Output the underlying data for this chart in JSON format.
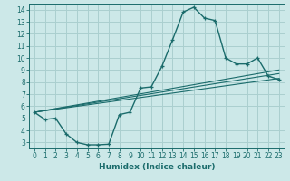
{
  "bg_color": "#cce8e8",
  "grid_color": "#aacfcf",
  "line_color": "#1a6b6b",
  "xlabel": "Humidex (Indice chaleur)",
  "xlim": [
    -0.5,
    23.5
  ],
  "ylim": [
    2.5,
    14.5
  ],
  "xticks": [
    0,
    1,
    2,
    3,
    4,
    5,
    6,
    7,
    8,
    9,
    10,
    11,
    12,
    13,
    14,
    15,
    16,
    17,
    18,
    19,
    20,
    21,
    22,
    23
  ],
  "yticks": [
    3,
    4,
    5,
    6,
    7,
    8,
    9,
    10,
    11,
    12,
    13,
    14
  ],
  "line1_x": [
    0,
    1,
    2,
    3,
    4,
    5,
    6,
    7,
    8,
    9,
    10,
    11,
    12,
    13,
    14,
    15,
    16,
    17,
    18,
    19,
    20,
    21,
    22,
    23
  ],
  "line1_y": [
    5.5,
    4.9,
    5.0,
    3.7,
    3.0,
    2.8,
    2.8,
    2.85,
    5.3,
    5.5,
    7.5,
    7.6,
    9.3,
    11.5,
    13.8,
    14.2,
    13.3,
    13.1,
    10.0,
    9.5,
    9.5,
    10.0,
    8.5,
    8.2
  ],
  "line2_x": [
    0,
    23
  ],
  "line2_y": [
    5.5,
    8.3
  ],
  "line3_x": [
    0,
    23
  ],
  "line3_y": [
    5.5,
    9.0
  ],
  "line4_x": [
    0,
    23
  ],
  "line4_y": [
    5.5,
    8.7
  ]
}
